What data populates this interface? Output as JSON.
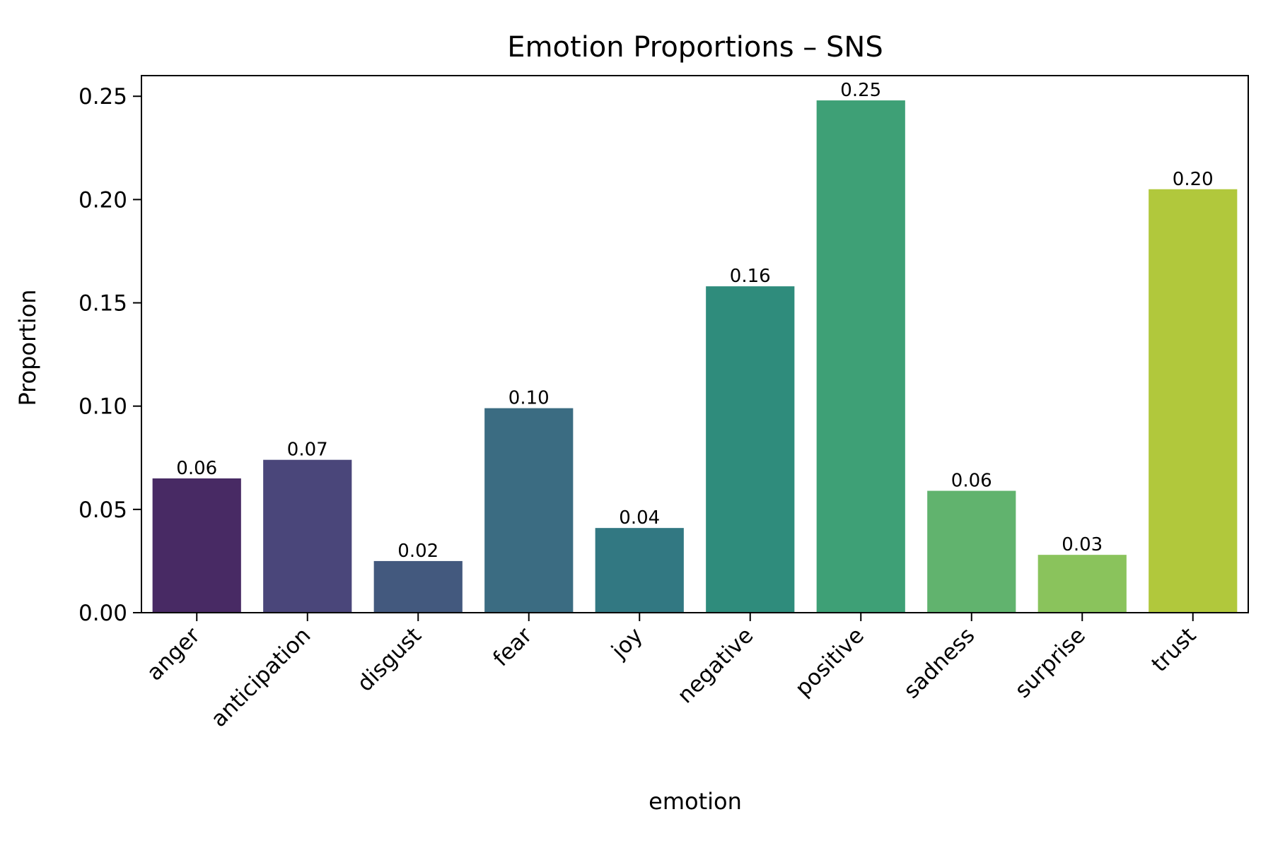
{
  "chart_data": {
    "type": "bar",
    "title": "Emotion Proportions – SNS",
    "xlabel": "emotion",
    "ylabel": "Proportion",
    "categories": [
      "anger",
      "anticipation",
      "disgust",
      "fear",
      "joy",
      "negative",
      "positive",
      "sadness",
      "surprise",
      "trust"
    ],
    "values": [
      0.065,
      0.074,
      0.025,
      0.099,
      0.041,
      0.158,
      0.248,
      0.059,
      0.028,
      0.205
    ],
    "value_labels": [
      "0.06",
      "0.07",
      "0.02",
      "0.10",
      "0.04",
      "0.16",
      "0.25",
      "0.06",
      "0.03",
      "0.20"
    ],
    "colors": [
      "#482A64",
      "#4A467A",
      "#43597E",
      "#3B6C82",
      "#327882",
      "#2F8C7C",
      "#3EA076",
      "#61B36E",
      "#8AC35C",
      "#B1C83C"
    ],
    "ylim": [
      0,
      0.26
    ],
    "yticks": [
      0.0,
      0.05,
      0.1,
      0.15,
      0.2,
      0.25
    ],
    "ytick_labels": [
      "0.00",
      "0.05",
      "0.10",
      "0.15",
      "0.20",
      "0.25"
    ],
    "grid": false,
    "legend": "none"
  }
}
